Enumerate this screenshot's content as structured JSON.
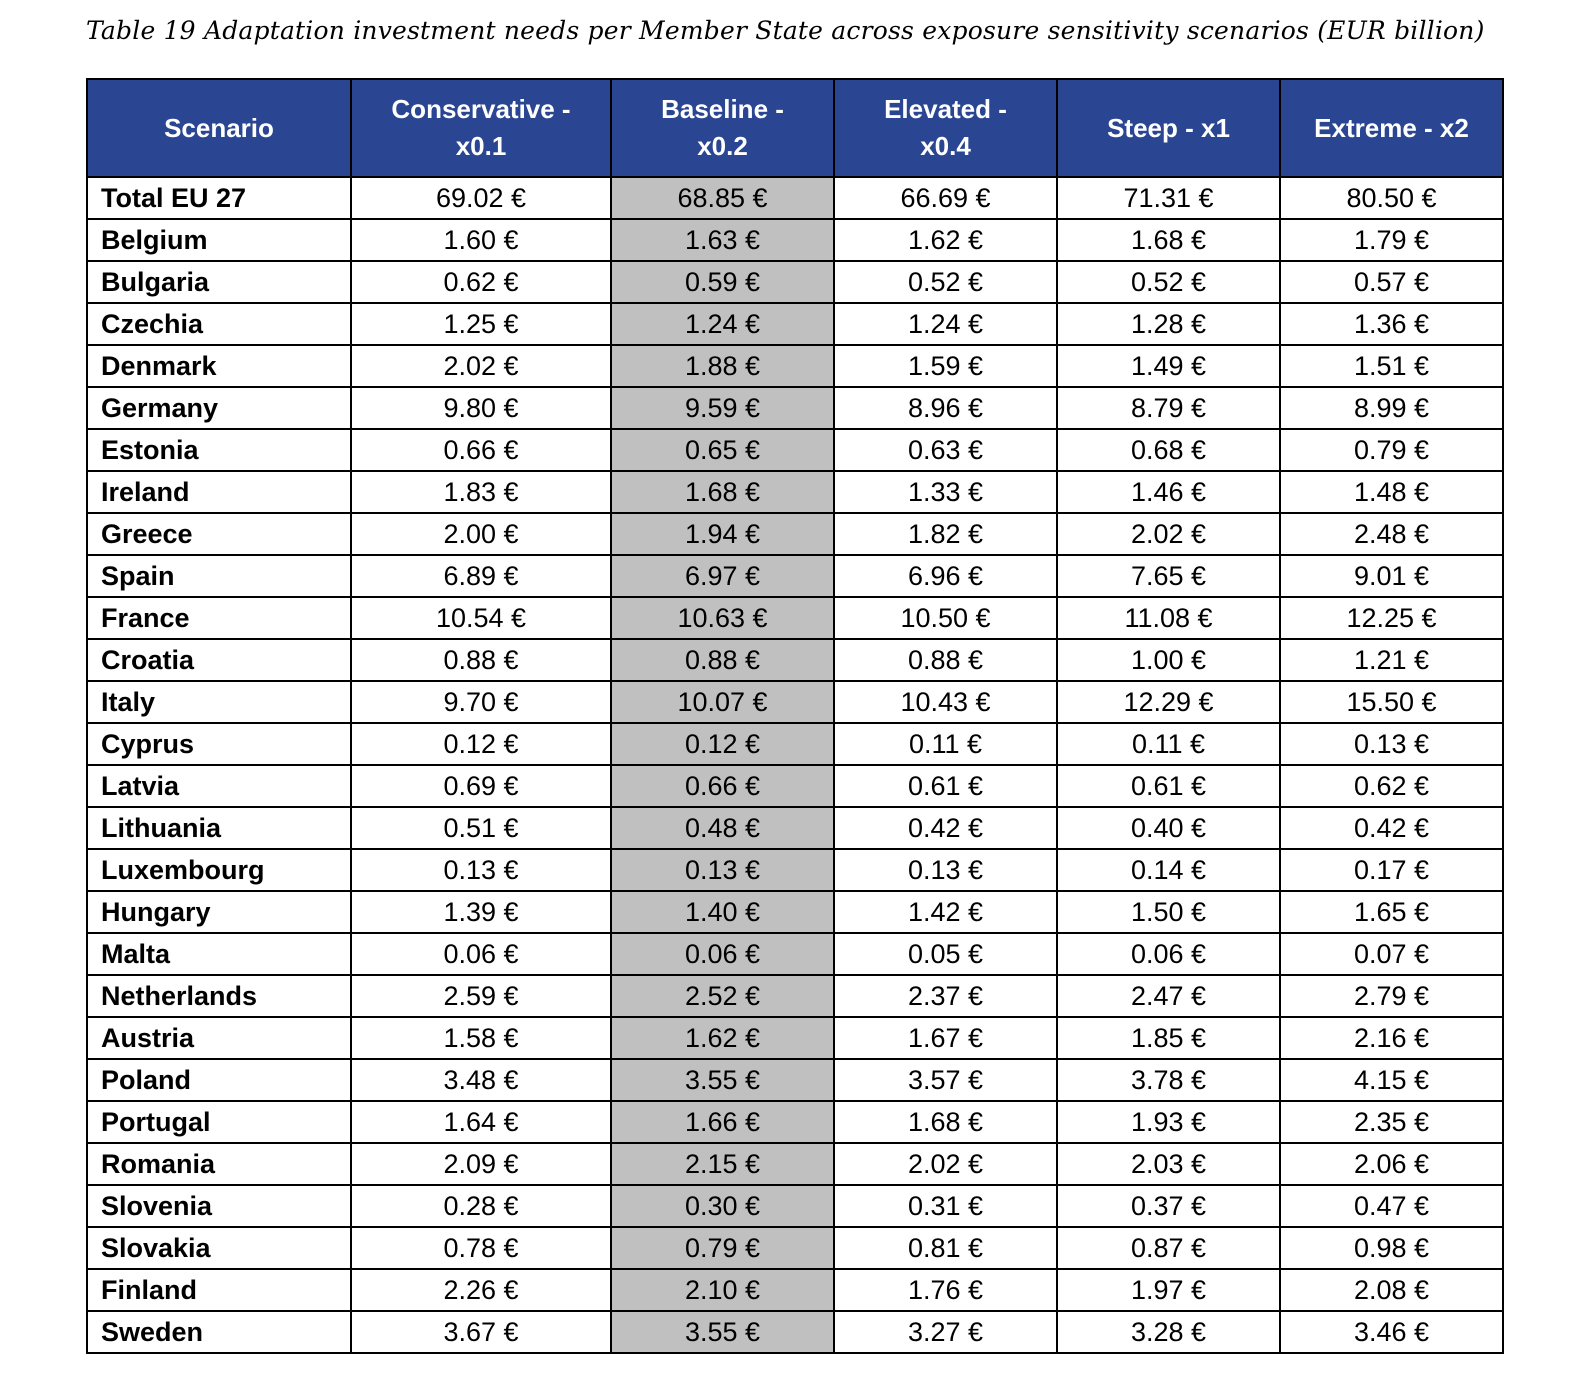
{
  "title": "Table 19 Adaptation investment needs per Member State across exposure sensitivity scenarios (EUR billion)",
  "table": {
    "columns": [
      "Scenario",
      "Conservative - x0.1",
      "Baseline - x0.2",
      "Elevated - x0.4",
      "Steep - x1",
      "Extreme - x2"
    ],
    "rows": [
      {
        "name": "Total EU 27",
        "values": [
          "69.02 €",
          "68.85 €",
          "66.69 €",
          "71.31 €",
          "80.50 €"
        ]
      },
      {
        "name": "Belgium",
        "values": [
          "1.60 €",
          "1.63 €",
          "1.62 €",
          "1.68 €",
          "1.79 €"
        ]
      },
      {
        "name": "Bulgaria",
        "values": [
          "0.62 €",
          "0.59 €",
          "0.52 €",
          "0.52 €",
          "0.57 €"
        ]
      },
      {
        "name": "Czechia",
        "values": [
          "1.25 €",
          "1.24 €",
          "1.24 €",
          "1.28 €",
          "1.36 €"
        ]
      },
      {
        "name": "Denmark",
        "values": [
          "2.02 €",
          "1.88 €",
          "1.59 €",
          "1.49 €",
          "1.51 €"
        ]
      },
      {
        "name": "Germany",
        "values": [
          "9.80 €",
          "9.59 €",
          "8.96 €",
          "8.79 €",
          "8.99 €"
        ]
      },
      {
        "name": "Estonia",
        "values": [
          "0.66 €",
          "0.65 €",
          "0.63 €",
          "0.68 €",
          "0.79 €"
        ]
      },
      {
        "name": "Ireland",
        "values": [
          "1.83 €",
          "1.68 €",
          "1.33 €",
          "1.46 €",
          "1.48 €"
        ]
      },
      {
        "name": "Greece",
        "values": [
          "2.00 €",
          "1.94 €",
          "1.82 €",
          "2.02 €",
          "2.48 €"
        ]
      },
      {
        "name": "Spain",
        "values": [
          "6.89 €",
          "6.97 €",
          "6.96 €",
          "7.65 €",
          "9.01 €"
        ]
      },
      {
        "name": "France",
        "values": [
          "10.54 €",
          "10.63 €",
          "10.50 €",
          "11.08 €",
          "12.25 €"
        ]
      },
      {
        "name": "Croatia",
        "values": [
          "0.88 €",
          "0.88 €",
          "0.88 €",
          "1.00 €",
          "1.21 €"
        ]
      },
      {
        "name": "Italy",
        "values": [
          "9.70 €",
          "10.07 €",
          "10.43 €",
          "12.29 €",
          "15.50 €"
        ]
      },
      {
        "name": "Cyprus",
        "values": [
          "0.12 €",
          "0.12 €",
          "0.11 €",
          "0.11 €",
          "0.13 €"
        ]
      },
      {
        "name": "Latvia",
        "values": [
          "0.69 €",
          "0.66 €",
          "0.61 €",
          "0.61 €",
          "0.62 €"
        ]
      },
      {
        "name": "Lithuania",
        "values": [
          "0.51 €",
          "0.48 €",
          "0.42 €",
          "0.40 €",
          "0.42 €"
        ]
      },
      {
        "name": "Luxembourg",
        "values": [
          "0.13 €",
          "0.13 €",
          "0.13 €",
          "0.14 €",
          "0.17 €"
        ]
      },
      {
        "name": "Hungary",
        "values": [
          "1.39 €",
          "1.40 €",
          "1.42 €",
          "1.50 €",
          "1.65 €"
        ]
      },
      {
        "name": "Malta",
        "values": [
          "0.06 €",
          "0.06 €",
          "0.05 €",
          "0.06 €",
          "0.07 €"
        ]
      },
      {
        "name": "Netherlands",
        "values": [
          "2.59 €",
          "2.52 €",
          "2.37 €",
          "2.47 €",
          "2.79 €"
        ]
      },
      {
        "name": "Austria",
        "values": [
          "1.58 €",
          "1.62 €",
          "1.67 €",
          "1.85 €",
          "2.16 €"
        ]
      },
      {
        "name": "Poland",
        "values": [
          "3.48 €",
          "3.55 €",
          "3.57 €",
          "3.78 €",
          "4.15 €"
        ]
      },
      {
        "name": "Portugal",
        "values": [
          "1.64 €",
          "1.66 €",
          "1.68 €",
          "1.93 €",
          "2.35 €"
        ]
      },
      {
        "name": "Romania",
        "values": [
          "2.09 €",
          "2.15 €",
          "2.02 €",
          "2.03 €",
          "2.06 €"
        ]
      },
      {
        "name": "Slovenia",
        "values": [
          "0.28 €",
          "0.30 €",
          "0.31 €",
          "0.37 €",
          "0.47 €"
        ]
      },
      {
        "name": "Slovakia",
        "values": [
          "0.78 €",
          "0.79 €",
          "0.81 €",
          "0.87 €",
          "0.98 €"
        ]
      },
      {
        "name": "Finland",
        "values": [
          "2.26 €",
          "2.10 €",
          "1.76 €",
          "1.97 €",
          "2.08 €"
        ]
      },
      {
        "name": "Sweden",
        "values": [
          "3.67 €",
          "3.55 €",
          "3.27 €",
          "3.28 €",
          "3.46 €"
        ]
      }
    ]
  }
}
